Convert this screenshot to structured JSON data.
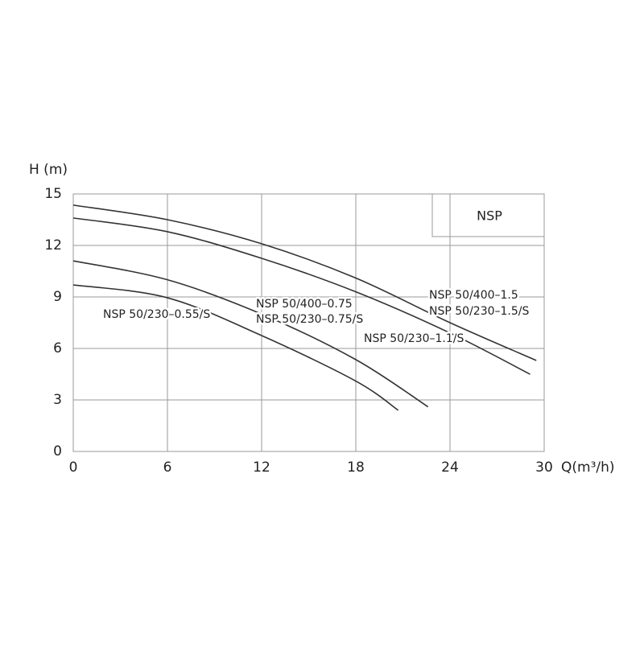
{
  "chart_data": {
    "type": "line",
    "ylabel": "H (m)",
    "xlabel": "Q(m³/h)",
    "box_label": "NSP",
    "xlim": [
      0,
      30
    ],
    "xticks": [
      0,
      6,
      12,
      18,
      24,
      30
    ],
    "ylim": [
      0,
      15
    ],
    "yticks": [
      0,
      3,
      6,
      9,
      12,
      15
    ],
    "grid": true,
    "color": "#333333",
    "series": [
      {
        "x": [
          0,
          6,
          12,
          18,
          24,
          29.5
        ],
        "values": [
          14.35,
          13.5,
          12.1,
          10.1,
          7.5,
          5.3
        ]
      },
      {
        "x": [
          0,
          6,
          12,
          18,
          24,
          29.1
        ],
        "values": [
          13.6,
          12.8,
          11.25,
          9.3,
          6.9,
          4.5
        ]
      },
      {
        "x": [
          0,
          6,
          12,
          18,
          22.6
        ],
        "values": [
          11.1,
          10.0,
          8.0,
          5.35,
          2.6
        ]
      },
      {
        "x": [
          0,
          6,
          12,
          18,
          20.7
        ],
        "values": [
          9.7,
          8.95,
          6.75,
          4.1,
          2.4
        ]
      }
    ],
    "annotations": [
      "NSP 50/400–1.5",
      "NSP 50/230–1.5/S",
      "NSP 50/400–0.75",
      "NSP 50/230–0.75/S",
      "NSP 50/230–1.1/S",
      "NSP 50/230–0.55/S"
    ]
  }
}
